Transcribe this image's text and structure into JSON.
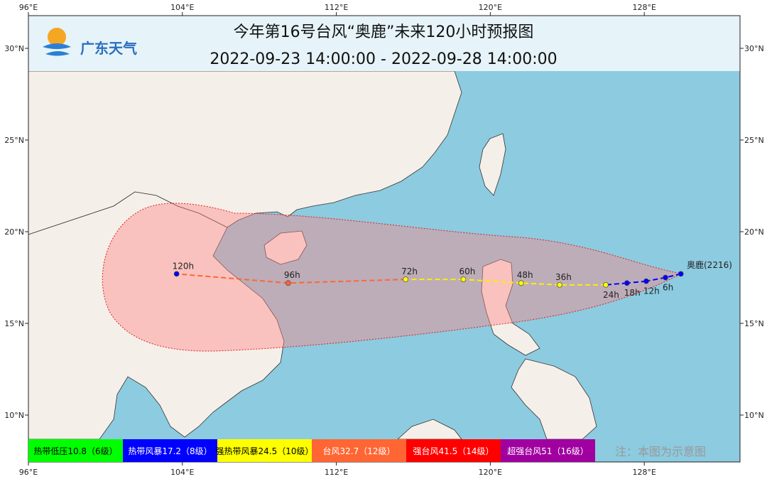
{
  "title": "今年第16号台风“奥鹿”未来120小时预报图",
  "subtitle": "2022-09-23 14:00:00 - 2022-09-28 14:00:00",
  "logo": {
    "text": "广东天气",
    "icon": "sun-wave-logo-icon"
  },
  "axes": {
    "lon_ticks": [
      "96°E",
      "104°E",
      "112°E",
      "120°E",
      "128°E"
    ],
    "lat_ticks": [
      "30°N",
      "25°N",
      "20°N",
      "15°N",
      "10°N"
    ]
  },
  "typhoon": {
    "name_label": "奥鹿(2216)",
    "track": [
      {
        "label": "",
        "lon": 129.9,
        "lat": 17.7,
        "color": "#0000ff"
      },
      {
        "label": "6h",
        "lon": 129.1,
        "lat": 17.5,
        "color": "#0000ff"
      },
      {
        "label": "12h",
        "lon": 128.1,
        "lat": 17.3,
        "color": "#0000ff"
      },
      {
        "label": "18h",
        "lon": 127.1,
        "lat": 17.2,
        "color": "#0000ff"
      },
      {
        "label": "24h",
        "lon": 126.0,
        "lat": 17.1,
        "color": "#ffff00"
      },
      {
        "label": "36h",
        "lon": 123.6,
        "lat": 17.1,
        "color": "#ffff00"
      },
      {
        "label": "48h",
        "lon": 121.6,
        "lat": 17.2,
        "color": "#ffff00"
      },
      {
        "label": "60h",
        "lon": 118.6,
        "lat": 17.4,
        "color": "#ffff00"
      },
      {
        "label": "72h",
        "lon": 115.6,
        "lat": 17.4,
        "color": "#ffff00"
      },
      {
        "label": "96h",
        "lon": 109.5,
        "lat": 17.2,
        "color": "#ff6633"
      },
      {
        "label": "120h",
        "lon": 103.7,
        "lat": 17.7,
        "color": "#0000ff"
      }
    ]
  },
  "legend": [
    {
      "label": "热带低压10.8（6级）",
      "bg": "#00ff00",
      "fg": "#000000"
    },
    {
      "label": "热带风暴17.2（8级）",
      "bg": "#0000ff",
      "fg": "#ffffff"
    },
    {
      "label": "强热带风暴24.5（10级）",
      "bg": "#ffff00",
      "fg": "#000000"
    },
    {
      "label": "台风32.7（12级）",
      "bg": "#ff6633",
      "fg": "#ffffff"
    },
    {
      "label": "强台风41.5（14级）",
      "bg": "#ff0000",
      "fg": "#ffffff"
    },
    {
      "label": "超强台风51（16级）",
      "bg": "#a000a0",
      "fg": "#ffffff"
    }
  ],
  "note": "注：本图为示意图",
  "colors": {
    "sea": "#8ccbe0",
    "land": "#f5efe9",
    "cone": "rgba(255,140,140,0.45)",
    "title_band": "#e6f3f8"
  }
}
